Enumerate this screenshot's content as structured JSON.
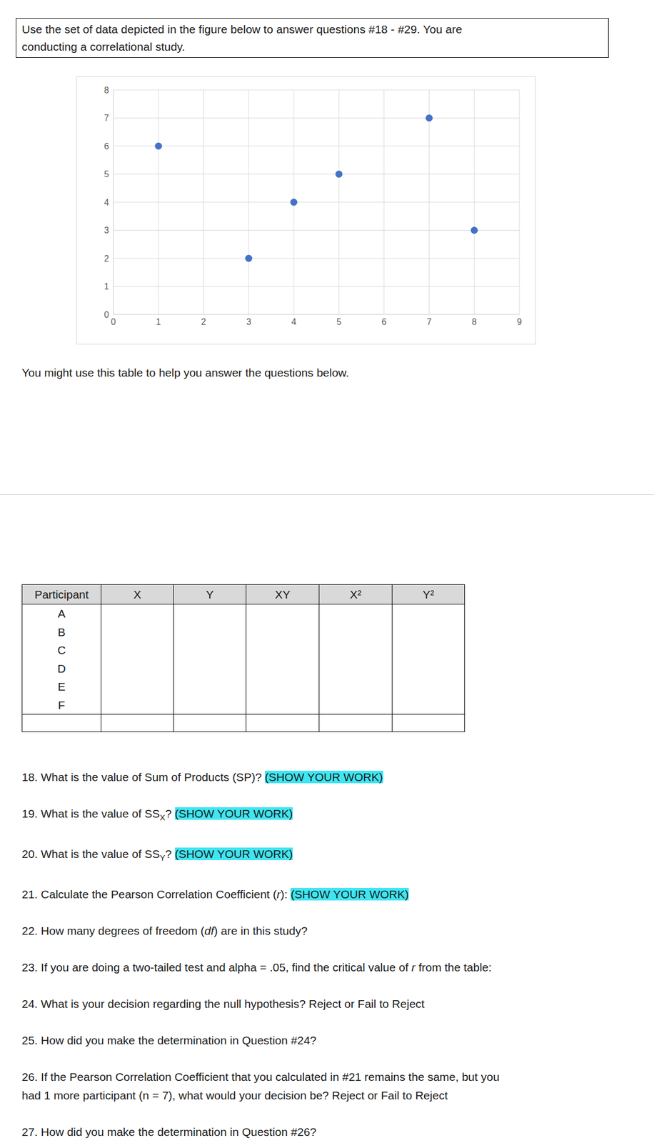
{
  "instructions": "Use the set of data depicted in the figure below to answer questions #18 - #29. You are\nconducting a correlational study.",
  "chart_data": {
    "type": "scatter",
    "x": [
      1,
      3,
      4,
      5,
      7,
      8
    ],
    "values": [
      6,
      2,
      4,
      5,
      7,
      3
    ],
    "color": "#4472c4",
    "xlim": [
      0,
      9
    ],
    "xticks": [
      0,
      1,
      2,
      3,
      4,
      5,
      6,
      7,
      8,
      9
    ],
    "ylim": [
      0,
      8
    ],
    "yticks": [
      0,
      1,
      2,
      3,
      4,
      5,
      6,
      7,
      8
    ],
    "grid": true
  },
  "table_note": "You might use this table to help you answer the questions below.",
  "table": {
    "columns": [
      "Participant",
      "X",
      "Y",
      "XY",
      "X²",
      "Y²"
    ],
    "participants": [
      "A",
      "B",
      "C",
      "D",
      "E",
      "F"
    ]
  },
  "questions": [
    {
      "number": "18.",
      "parts": [
        {
          "text": "What is the value of Sum of Products (SP)? "
        },
        {
          "text": "(SHOW YOUR WORK)",
          "highlight": true
        }
      ]
    },
    {
      "number": "19.",
      "parts": [
        {
          "text": "What is the value of SS"
        },
        {
          "text": "X",
          "sub": true
        },
        {
          "text": "? "
        },
        {
          "text": "(SHOW YOUR WORK)",
          "highlight": true
        }
      ]
    },
    {
      "number": "20.",
      "parts": [
        {
          "text": "What is the value of SS"
        },
        {
          "text": "Y",
          "sub": true
        },
        {
          "text": "? "
        },
        {
          "text": "(SHOW YOUR WORK)",
          "highlight": true
        }
      ]
    },
    {
      "number": "21.",
      "parts": [
        {
          "text": "Calculate the Pearson Correlation Coefficient ("
        },
        {
          "text": "r",
          "italic": true
        },
        {
          "text": "): "
        },
        {
          "text": "(SHOW YOUR WORK)",
          "highlight": true
        }
      ]
    },
    {
      "number": "22.",
      "parts": [
        {
          "text": "How many degrees of freedom ("
        },
        {
          "text": "df",
          "italic": true
        },
        {
          "text": ") are in this study?"
        }
      ]
    },
    {
      "number": "23.",
      "parts": [
        {
          "text": "If you are doing a two-tailed test and alpha = .05, find the critical value of "
        },
        {
          "text": "r",
          "italic": true
        },
        {
          "text": " from the table:"
        }
      ]
    },
    {
      "number": "24.",
      "parts": [
        {
          "text": "What is your decision regarding the null hypothesis? Reject or Fail to Reject"
        }
      ]
    },
    {
      "number": "25.",
      "parts": [
        {
          "text": "How did you make the determination in Question #24?"
        }
      ]
    },
    {
      "number": "26.",
      "parts": [
        {
          "text": "If the Pearson Correlation Coefficient that you calculated in #21 remains the same, but you\nhad 1 more participant (n = 7), what would your decision be? Reject or Fail to Reject"
        }
      ]
    },
    {
      "number": "27.",
      "parts": [
        {
          "text": "How did you make the determination in Question #26?"
        }
      ]
    }
  ]
}
